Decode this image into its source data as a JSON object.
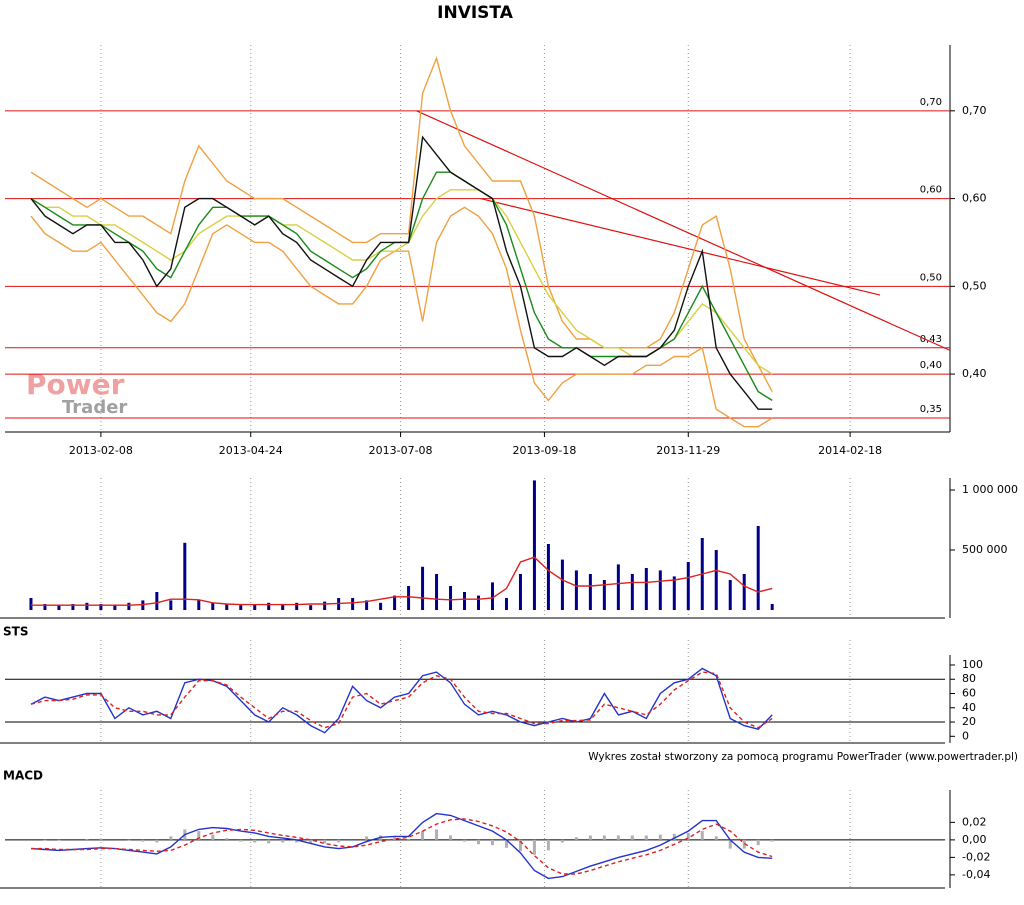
{
  "chart_data": [
    {
      "type": "line",
      "title": "INVISTA",
      "logo": {
        "line1": "Power",
        "line2": "Trader"
      },
      "x": [
        "2013-01-04",
        "2013-01-11",
        "2013-01-18",
        "2013-01-25",
        "2013-02-01",
        "2013-02-08",
        "2013-02-15",
        "2013-02-22",
        "2013-03-01",
        "2013-03-08",
        "2013-03-15",
        "2013-03-22",
        "2013-03-29",
        "2013-04-05",
        "2013-04-12",
        "2013-04-19",
        "2013-04-26",
        "2013-05-03",
        "2013-05-10",
        "2013-05-17",
        "2013-05-24",
        "2013-05-31",
        "2013-06-07",
        "2013-06-14",
        "2013-06-21",
        "2013-06-28",
        "2013-07-05",
        "2013-07-12",
        "2013-07-19",
        "2013-07-26",
        "2013-08-02",
        "2013-08-09",
        "2013-08-16",
        "2013-08-23",
        "2013-08-30",
        "2013-09-06",
        "2013-09-13",
        "2013-09-20",
        "2013-09-27",
        "2013-10-04",
        "2013-10-11",
        "2013-10-18",
        "2013-10-25",
        "2013-11-01",
        "2013-11-08",
        "2013-11-15",
        "2013-11-22",
        "2013-11-29",
        "2013-12-06",
        "2013-12-13",
        "2013-12-20",
        "2013-12-27",
        "2014-01-03",
        "2014-01-10"
      ],
      "xlim": [
        "2012-12-22",
        "2014-04-09"
      ],
      "xticks": [
        "2013-02-08",
        "2013-04-24",
        "2013-07-08",
        "2013-09-18",
        "2013-11-29",
        "2014-02-18"
      ],
      "ylim": [
        0.334,
        0.775
      ],
      "yticks": [
        {
          "value": 0.4,
          "label": "0,40"
        },
        {
          "value": 0.5,
          "label": "0,50"
        },
        {
          "value": 0.6,
          "label": "0,60"
        },
        {
          "value": 0.7,
          "label": "0,70"
        }
      ],
      "hlines": [
        {
          "value": 0.7,
          "label": "0,70"
        },
        {
          "value": 0.6,
          "label": "0,60"
        },
        {
          "value": 0.5,
          "label": "0,50"
        },
        {
          "value": 0.43,
          "label": "0,43"
        },
        {
          "value": 0.4,
          "label": "0,40"
        },
        {
          "value": 0.35,
          "label": "0,35"
        }
      ],
      "hline_color": "#dd1111",
      "trendlines": [
        {
          "x": [
            "2013-07-16",
            "2014-04-09"
          ],
          "y": [
            0.7,
            0.427
          ]
        },
        {
          "x": [
            "2013-08-17",
            "2014-03-05"
          ],
          "y": [
            0.6,
            0.49
          ]
        }
      ],
      "series": [
        {
          "color": "#f0a040",
          "values": [
            0.63,
            0.62,
            0.61,
            0.6,
            0.59,
            0.6,
            0.59,
            0.58,
            0.58,
            0.57,
            0.56,
            0.62,
            0.66,
            0.64,
            0.62,
            0.61,
            0.6,
            0.6,
            0.6,
            0.59,
            0.58,
            0.57,
            0.56,
            0.55,
            0.55,
            0.56,
            0.56,
            0.56,
            0.72,
            0.76,
            0.7,
            0.66,
            0.64,
            0.62,
            0.62,
            0.62,
            0.58,
            0.5,
            0.46,
            0.44,
            0.44,
            0.43,
            0.43,
            0.43,
            0.43,
            0.44,
            0.47,
            0.52,
            0.57,
            0.58,
            0.52,
            0.44,
            0.41,
            0.38
          ]
        },
        {
          "color": "#f0a040",
          "values": [
            0.58,
            0.56,
            0.55,
            0.54,
            0.54,
            0.55,
            0.53,
            0.51,
            0.49,
            0.47,
            0.46,
            0.48,
            0.52,
            0.56,
            0.57,
            0.56,
            0.55,
            0.55,
            0.54,
            0.52,
            0.5,
            0.49,
            0.48,
            0.48,
            0.5,
            0.53,
            0.54,
            0.54,
            0.46,
            0.55,
            0.58,
            0.59,
            0.58,
            0.56,
            0.52,
            0.45,
            0.39,
            0.37,
            0.39,
            0.4,
            0.4,
            0.4,
            0.4,
            0.4,
            0.41,
            0.41,
            0.42,
            0.42,
            0.43,
            0.36,
            0.35,
            0.34,
            0.34,
            0.35
          ]
        },
        {
          "color": "#d8d040",
          "values": [
            0.6,
            0.59,
            0.59,
            0.58,
            0.58,
            0.57,
            0.57,
            0.56,
            0.55,
            0.54,
            0.53,
            0.54,
            0.56,
            0.57,
            0.58,
            0.58,
            0.58,
            0.58,
            0.57,
            0.57,
            0.56,
            0.55,
            0.54,
            0.53,
            0.53,
            0.54,
            0.54,
            0.55,
            0.58,
            0.6,
            0.61,
            0.61,
            0.61,
            0.6,
            0.58,
            0.55,
            0.52,
            0.49,
            0.47,
            0.45,
            0.44,
            0.43,
            0.43,
            0.42,
            0.42,
            0.43,
            0.44,
            0.46,
            0.48,
            0.47,
            0.45,
            0.43,
            0.41,
            0.4
          ]
        },
        {
          "color": "#1a8a1a",
          "values": [
            0.6,
            0.59,
            0.58,
            0.57,
            0.57,
            0.57,
            0.56,
            0.55,
            0.54,
            0.52,
            0.51,
            0.54,
            0.57,
            0.59,
            0.59,
            0.58,
            0.58,
            0.58,
            0.57,
            0.56,
            0.54,
            0.53,
            0.52,
            0.51,
            0.52,
            0.54,
            0.55,
            0.55,
            0.6,
            0.63,
            0.63,
            0.62,
            0.61,
            0.6,
            0.57,
            0.52,
            0.47,
            0.44,
            0.43,
            0.43,
            0.42,
            0.42,
            0.42,
            0.42,
            0.42,
            0.43,
            0.44,
            0.47,
            0.5,
            0.47,
            0.44,
            0.41,
            0.38,
            0.37
          ]
        },
        {
          "color": "#111111",
          "values": [
            0.6,
            0.58,
            0.57,
            0.56,
            0.57,
            0.57,
            0.55,
            0.55,
            0.53,
            0.5,
            0.52,
            0.59,
            0.6,
            0.6,
            0.59,
            0.58,
            0.57,
            0.58,
            0.56,
            0.55,
            0.53,
            0.52,
            0.51,
            0.5,
            0.53,
            0.55,
            0.55,
            0.55,
            0.67,
            0.65,
            0.63,
            0.62,
            0.61,
            0.6,
            0.54,
            0.5,
            0.43,
            0.42,
            0.42,
            0.43,
            0.42,
            0.41,
            0.42,
            0.42,
            0.42,
            0.43,
            0.45,
            0.5,
            0.54,
            0.43,
            0.4,
            0.38,
            0.36,
            0.36
          ]
        }
      ]
    },
    {
      "type": "bar",
      "ylim": [
        0,
        1100000
      ],
      "yticks": [
        {
          "value": 500000,
          "label": "500 000"
        },
        {
          "value": 1000000,
          "label": "1 000 000"
        }
      ],
      "series": [
        {
          "type": "bar",
          "color": "#00008b",
          "values": [
            100000,
            50000,
            40000,
            50000,
            60000,
            50000,
            40000,
            60000,
            80000,
            150000,
            80000,
            560000,
            80000,
            60000,
            50000,
            40000,
            50000,
            60000,
            50000,
            60000,
            40000,
            70000,
            100000,
            100000,
            80000,
            60000,
            120000,
            200000,
            360000,
            300000,
            200000,
            150000,
            120000,
            230000,
            100000,
            300000,
            1080000,
            550000,
            420000,
            330000,
            300000,
            250000,
            380000,
            300000,
            350000,
            330000,
            280000,
            400000,
            600000,
            500000,
            250000,
            300000,
            700000,
            50000
          ]
        },
        {
          "type": "line",
          "color": "#dd2222",
          "values": [
            40000,
            40000,
            40000,
            40000,
            40000,
            40000,
            40000,
            40000,
            45000,
            60000,
            90000,
            90000,
            85000,
            60000,
            50000,
            45000,
            45000,
            45000,
            45000,
            45000,
            50000,
            50000,
            55000,
            60000,
            70000,
            90000,
            110000,
            110000,
            100000,
            90000,
            85000,
            90000,
            90000,
            100000,
            180000,
            400000,
            440000,
            330000,
            250000,
            200000,
            200000,
            210000,
            220000,
            230000,
            230000,
            240000,
            250000,
            270000,
            300000,
            330000,
            300000,
            200000,
            150000,
            180000
          ]
        }
      ]
    },
    {
      "type": "line",
      "title": "STS",
      "ylim": [
        -8,
        114
      ],
      "yticks": [
        0,
        20,
        40,
        60,
        80,
        100
      ],
      "reflines": [
        80,
        20
      ],
      "series": [
        {
          "color": "#2233cc",
          "values": [
            45,
            55,
            50,
            55,
            60,
            60,
            25,
            40,
            30,
            35,
            25,
            75,
            80,
            78,
            70,
            50,
            30,
            20,
            40,
            30,
            15,
            5,
            25,
            70,
            50,
            40,
            55,
            60,
            85,
            90,
            75,
            45,
            30,
            35,
            30,
            20,
            15,
            20,
            25,
            20,
            25,
            60,
            30,
            35,
            25,
            60,
            75,
            80,
            95,
            85,
            25,
            15,
            10,
            30
          ]
        },
        {
          "color": "#dd2222",
          "dash": true,
          "values": [
            45,
            50,
            50,
            52,
            58,
            58,
            40,
            35,
            35,
            30,
            30,
            55,
            78,
            78,
            72,
            55,
            40,
            25,
            35,
            35,
            22,
            12,
            18,
            55,
            60,
            45,
            50,
            55,
            75,
            85,
            80,
            55,
            35,
            32,
            32,
            25,
            18,
            18,
            22,
            22,
            23,
            45,
            40,
            35,
            30,
            45,
            65,
            78,
            90,
            88,
            40,
            20,
            12,
            25
          ]
        }
      ],
      "footer": "Wykres został stworzony za pomocą programu PowerTrader (www.powertrader.pl)"
    },
    {
      "type": "line",
      "title": "MACD",
      "ylim": [
        -0.055,
        0.057
      ],
      "yticks": [
        {
          "value": -0.04,
          "label": "-0,04"
        },
        {
          "value": -0.02,
          "label": "-0,02"
        },
        {
          "value": 0,
          "label": "0,00"
        },
        {
          "value": 0.02,
          "label": "0,02"
        }
      ],
      "reflines": [
        0
      ],
      "histogram": {
        "color": "#b0b0b0",
        "values": [
          0,
          -0.001,
          -0.001,
          0,
          0.001,
          0.001,
          0,
          -0.001,
          -0.002,
          -0.003,
          0.004,
          0.012,
          0.01,
          0.006,
          0.002,
          -0.002,
          -0.003,
          -0.004,
          -0.003,
          -0.003,
          -0.004,
          -0.004,
          -0.003,
          0,
          0.004,
          0.005,
          0.003,
          0.001,
          0.01,
          0.012,
          0.005,
          -0.002,
          -0.005,
          -0.006,
          -0.009,
          -0.013,
          -0.017,
          -0.012,
          -0.003,
          0.003,
          0.005,
          0.005,
          0.005,
          0.005,
          0.005,
          0.006,
          0.007,
          0.008,
          0.01,
          0.004,
          -0.01,
          -0.01,
          -0.006,
          -0.002
        ]
      },
      "series": [
        {
          "color": "#2233cc",
          "values": [
            -0.01,
            -0.011,
            -0.012,
            -0.011,
            -0.01,
            -0.009,
            -0.01,
            -0.012,
            -0.014,
            -0.016,
            -0.008,
            0.006,
            0.012,
            0.014,
            0.013,
            0.01,
            0.008,
            0.004,
            0.002,
            0.0,
            -0.004,
            -0.008,
            -0.01,
            -0.008,
            -0.002,
            0.003,
            0.004,
            0.004,
            0.02,
            0.03,
            0.028,
            0.022,
            0.016,
            0.01,
            0.0,
            -0.015,
            -0.035,
            -0.044,
            -0.042,
            -0.036,
            -0.03,
            -0.025,
            -0.02,
            -0.016,
            -0.012,
            -0.006,
            0.002,
            0.01,
            0.022,
            0.022,
            0.0,
            -0.014,
            -0.02,
            -0.021
          ]
        },
        {
          "color": "#dd2222",
          "dash": true,
          "values": [
            -0.01,
            -0.01,
            -0.011,
            -0.011,
            -0.011,
            -0.01,
            -0.01,
            -0.011,
            -0.012,
            -0.013,
            -0.012,
            -0.006,
            0.002,
            0.008,
            0.011,
            0.012,
            0.011,
            0.008,
            0.005,
            0.003,
            0.0,
            -0.004,
            -0.007,
            -0.008,
            -0.006,
            -0.002,
            0.001,
            0.003,
            0.01,
            0.018,
            0.023,
            0.024,
            0.021,
            0.016,
            0.009,
            -0.002,
            -0.018,
            -0.032,
            -0.039,
            -0.039,
            -0.035,
            -0.03,
            -0.025,
            -0.021,
            -0.017,
            -0.012,
            -0.005,
            0.002,
            0.012,
            0.018,
            0.01,
            -0.004,
            -0.014,
            -0.019
          ]
        }
      ]
    }
  ]
}
